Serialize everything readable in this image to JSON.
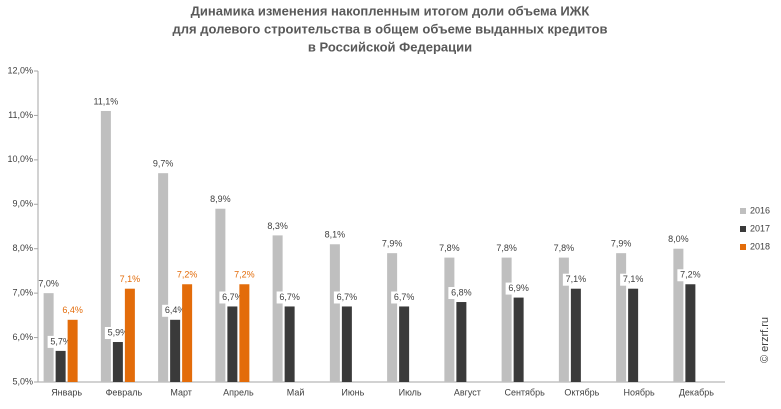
{
  "chart_data": {
    "type": "bar",
    "title": [
      "Динамика изменения накопленным итогом доли объема ИЖК",
      "для долевого строительства в общем объеме выданных кредитов",
      "в Российской  Федерации"
    ],
    "categories": [
      "Январь",
      "Февраль",
      "Март",
      "Апрель",
      "Май",
      "Июнь",
      "Июль",
      "Август",
      "Сентябрь",
      "Октябрь",
      "Ноябрь",
      "Декабрь"
    ],
    "series": [
      {
        "name": "2016",
        "color": "#bfbfbf",
        "values": [
          7.0,
          11.1,
          9.7,
          8.9,
          8.3,
          8.1,
          7.9,
          7.8,
          7.8,
          7.8,
          7.9,
          8.0
        ],
        "value_labels": [
          "7,0%",
          "11,1%",
          "9,7%",
          "8,9%",
          "8,3%",
          "8,1%",
          "7,9%",
          "7,8%",
          "7,8%",
          "7,8%",
          "7,9%",
          "8,0%"
        ]
      },
      {
        "name": "2017",
        "color": "#3a3a3a",
        "values": [
          5.7,
          5.9,
          6.4,
          6.7,
          6.7,
          6.7,
          6.7,
          6.8,
          6.9,
          7.1,
          7.1,
          7.2
        ],
        "value_labels": [
          "5,7%",
          "5,9%",
          "6,4%",
          "6,7%",
          "6,7%",
          "6,7%",
          "6,7%",
          "6,8%",
          "6,9%",
          "7,1%",
          "7,1%",
          "7,2%"
        ]
      },
      {
        "name": "2018",
        "color": "#e36c0a",
        "values": [
          6.4,
          7.1,
          7.2,
          7.2,
          null,
          null,
          null,
          null,
          null,
          null,
          null,
          null
        ],
        "value_labels": [
          "6,4%",
          "7,1%",
          "7,2%",
          "7,2%",
          null,
          null,
          null,
          null,
          null,
          null,
          null,
          null
        ]
      }
    ],
    "ylim": [
      5,
      12
    ],
    "yticks": [
      {
        "value": 5,
        "label": "5,0%"
      },
      {
        "value": 6,
        "label": "6,0%"
      },
      {
        "value": 7,
        "label": "7,0%"
      },
      {
        "value": 8,
        "label": "8,0%"
      },
      {
        "value": 9,
        "label": "9,0%"
      },
      {
        "value": 10,
        "label": "10,0%"
      },
      {
        "value": 11,
        "label": "11,0%"
      },
      {
        "value": 12,
        "label": "12,0%"
      }
    ],
    "grid": false,
    "legend": "right",
    "watermark": "© erzrf.ru"
  }
}
